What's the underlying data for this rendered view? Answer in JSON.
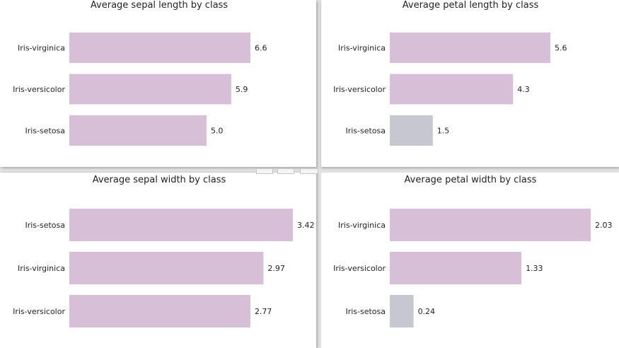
{
  "colors": {
    "bar_default": "#d8bfd8",
    "bar_low": "#c6c7d0"
  },
  "chart_data": [
    {
      "type": "bar",
      "orientation": "horizontal",
      "title": "Average sepal length by class",
      "categories": [
        "Iris-virginica",
        "Iris-versicolor",
        "Iris-setosa"
      ],
      "values": [
        6.6,
        5.9,
        5.0
      ],
      "value_labels": [
        "6.6",
        "5.9",
        "5.0"
      ],
      "bar_colors": [
        "#d8bfd8",
        "#d8bfd8",
        "#d8bfd8"
      ],
      "xlim": [
        0,
        6.6
      ],
      "grid": false
    },
    {
      "type": "bar",
      "orientation": "horizontal",
      "title": "Average petal length by class",
      "categories": [
        "Iris-virginica",
        "Iris-versicolor",
        "Iris-setosa"
      ],
      "values": [
        5.6,
        4.3,
        1.5
      ],
      "value_labels": [
        "5.6",
        "4.3",
        "1.5"
      ],
      "bar_colors": [
        "#d8bfd8",
        "#d8bfd8",
        "#c6c7d0"
      ],
      "xlim": [
        0,
        5.6
      ],
      "grid": false
    },
    {
      "type": "bar",
      "orientation": "horizontal",
      "title": "Average sepal width by class",
      "categories": [
        "Iris-setosa",
        "Iris-virginica",
        "Iris-versicolor"
      ],
      "values": [
        3.42,
        2.97,
        2.77
      ],
      "value_labels": [
        "3.42",
        "2.97",
        "2.77"
      ],
      "bar_colors": [
        "#d8bfd8",
        "#d8bfd8",
        "#d8bfd8"
      ],
      "xlim": [
        0,
        3.42
      ],
      "grid": false
    },
    {
      "type": "bar",
      "orientation": "horizontal",
      "title": "Average petal width by class",
      "categories": [
        "Iris-virginica",
        "Iris-versicolor",
        "Iris-setosa"
      ],
      "values": [
        2.03,
        1.33,
        0.24
      ],
      "value_labels": [
        "2.03",
        "1.33",
        "0.24"
      ],
      "bar_colors": [
        "#d8bfd8",
        "#d8bfd8",
        "#c6c7d0"
      ],
      "xlim": [
        0,
        2.03
      ],
      "grid": false
    }
  ]
}
